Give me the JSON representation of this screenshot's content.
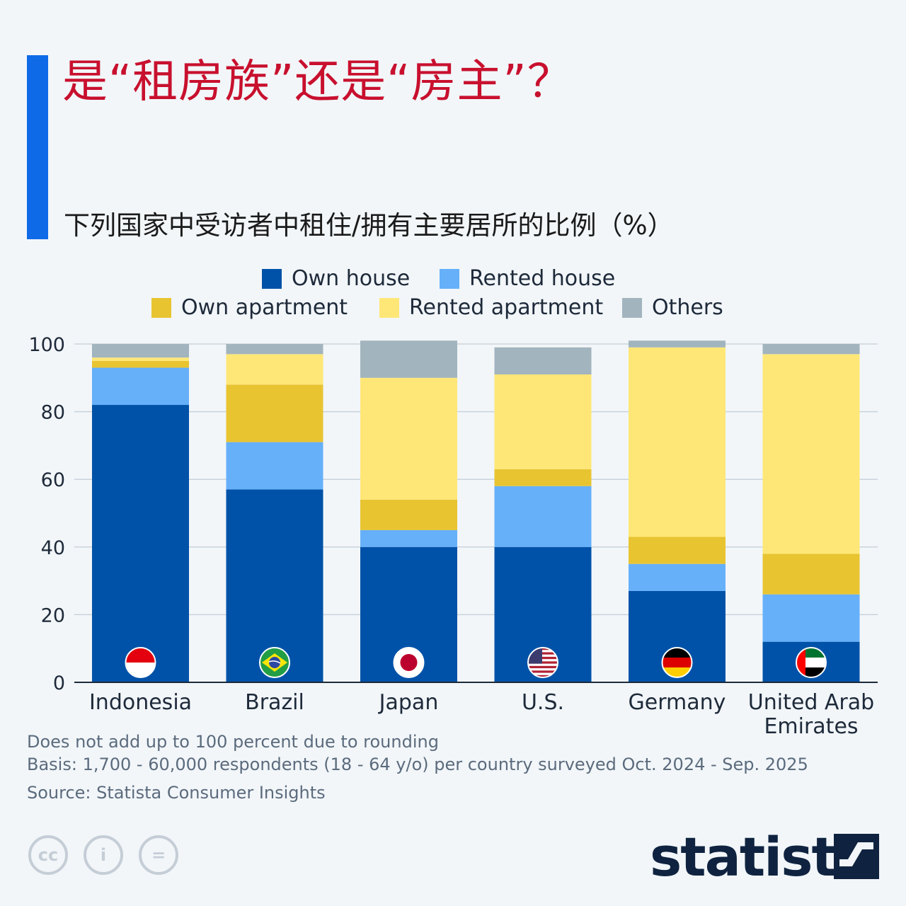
{
  "header": {
    "title": "是“租房族”还是“房主”？",
    "subtitle": "下列国家中受访者中租住/拥有主要居所的比例（%）"
  },
  "colors": {
    "accent": "#0f6ae8",
    "title": "#c8102e"
  },
  "chart_data": {
    "type": "bar",
    "stacked": true,
    "categories": [
      "Indonesia",
      "Brazil",
      "Japan",
      "U.S.",
      "Germany",
      "United Arab Emirates"
    ],
    "category_lines": [
      [
        "Indonesia"
      ],
      [
        "Brazil"
      ],
      [
        "Japan"
      ],
      [
        "U.S."
      ],
      [
        "Germany"
      ],
      [
        "United Arab",
        "Emirates"
      ]
    ],
    "flags": [
      "indonesia-flag-icon",
      "brazil-flag-icon",
      "japan-flag-icon",
      "us-flag-icon",
      "germany-flag-icon",
      "uae-flag-icon"
    ],
    "series": [
      {
        "name": "Own house",
        "color": "#0052a8",
        "values": [
          82,
          57,
          40,
          40,
          27,
          12
        ]
      },
      {
        "name": "Rented house",
        "color": "#66b0fa",
        "values": [
          11,
          14,
          5,
          18,
          8,
          14
        ]
      },
      {
        "name": "Own apartment",
        "color": "#e8c431",
        "values": [
          2,
          17,
          9,
          5,
          8,
          12
        ]
      },
      {
        "name": "Rented apartment",
        "color": "#ffe777",
        "values": [
          1,
          9,
          36,
          28,
          56,
          59
        ]
      },
      {
        "name": "Others",
        "color": "#a2b4be",
        "values": [
          4,
          3,
          11,
          8,
          2,
          3
        ]
      }
    ],
    "ylim": [
      0,
      100
    ],
    "yticks": [
      "0",
      "20",
      "40",
      "60",
      "80",
      "100"
    ],
    "grid": true,
    "legend_position": "top"
  },
  "notes": {
    "rounding": "Does not add up to 100 percent due to rounding",
    "basis": "Basis: 1,700 - 60,000 respondents (18 - 64 y/o) per country surveyed Oct. 2024 - Sep. 2025",
    "source": "Source: Statista Consumer Insights"
  },
  "footer": {
    "brand": "statista",
    "license_icons": [
      "cc-icon",
      "attribution-icon",
      "no-derivatives-icon"
    ],
    "license_glyphs": [
      "cc",
      "i",
      "="
    ]
  }
}
